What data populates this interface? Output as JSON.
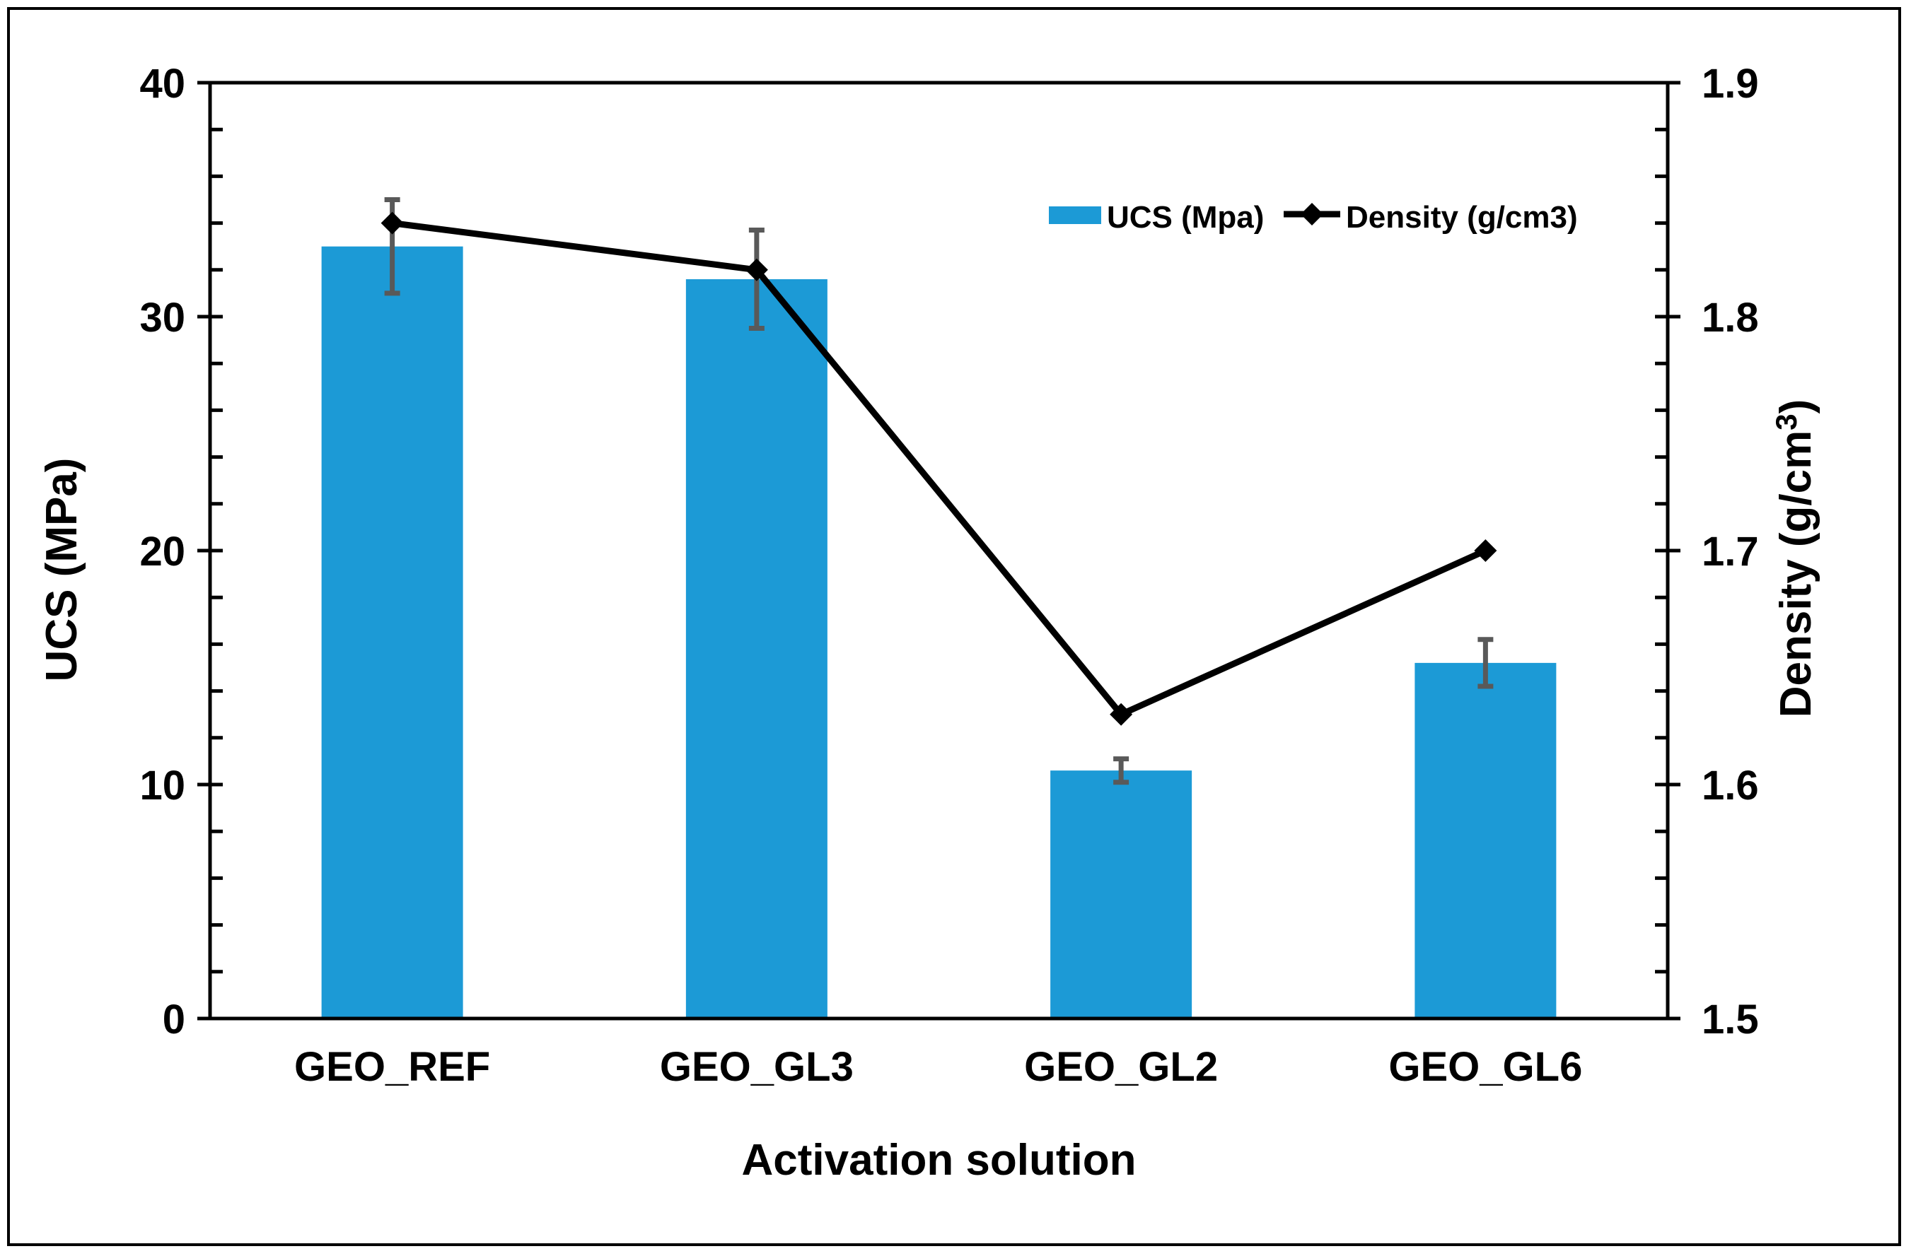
{
  "figure": {
    "border_color": "#000000",
    "background": "#ffffff"
  },
  "chart_data": {
    "type": "combo-bar-line",
    "categories": [
      "GEO_REF",
      "GEO_GL3",
      "GEO_GL2",
      "GEO_GL6"
    ],
    "series": [
      {
        "name": "UCS (Mpa)",
        "type": "bar",
        "axis": "left",
        "color": "#1C9AD6",
        "values": [
          33.0,
          31.6,
          10.6,
          15.2
        ],
        "error_plus_minus": [
          2.0,
          2.1,
          0.5,
          1.0
        ],
        "error_color": "#595959"
      },
      {
        "name": "Density (g/cm3)",
        "type": "line",
        "axis": "right",
        "color": "#000000",
        "marker": "diamond",
        "values": [
          1.84,
          1.82,
          1.63,
          1.7
        ]
      }
    ],
    "xlabel": "Activation solution",
    "ylabel_left": "UCS (MPa)",
    "ylabel_right": "Density (g/cm³)",
    "ylabel_right_parts": {
      "pre": "Density (g/cm",
      "sup": "3",
      "post": ")"
    },
    "axis_left": {
      "min": 0,
      "max": 40,
      "major_step": 10,
      "minor_step": 2,
      "tick_labels": [
        "0",
        "10",
        "20",
        "30",
        "40"
      ]
    },
    "axis_right": {
      "min": 1.5,
      "max": 1.9,
      "major_step": 0.1,
      "minor_step": 0.02,
      "tick_labels": [
        "1.5",
        "1.6",
        "1.7",
        "1.8",
        "1.9"
      ]
    },
    "legend": {
      "position": "top-center-inside",
      "items": [
        {
          "label": "UCS (Mpa)",
          "swatch": "bar",
          "color": "#1C9AD6"
        },
        {
          "label": "Density (g/cm3)",
          "swatch": "line-diamond",
          "color": "#000000"
        }
      ]
    },
    "grid": false,
    "axis_color": "#000000"
  }
}
